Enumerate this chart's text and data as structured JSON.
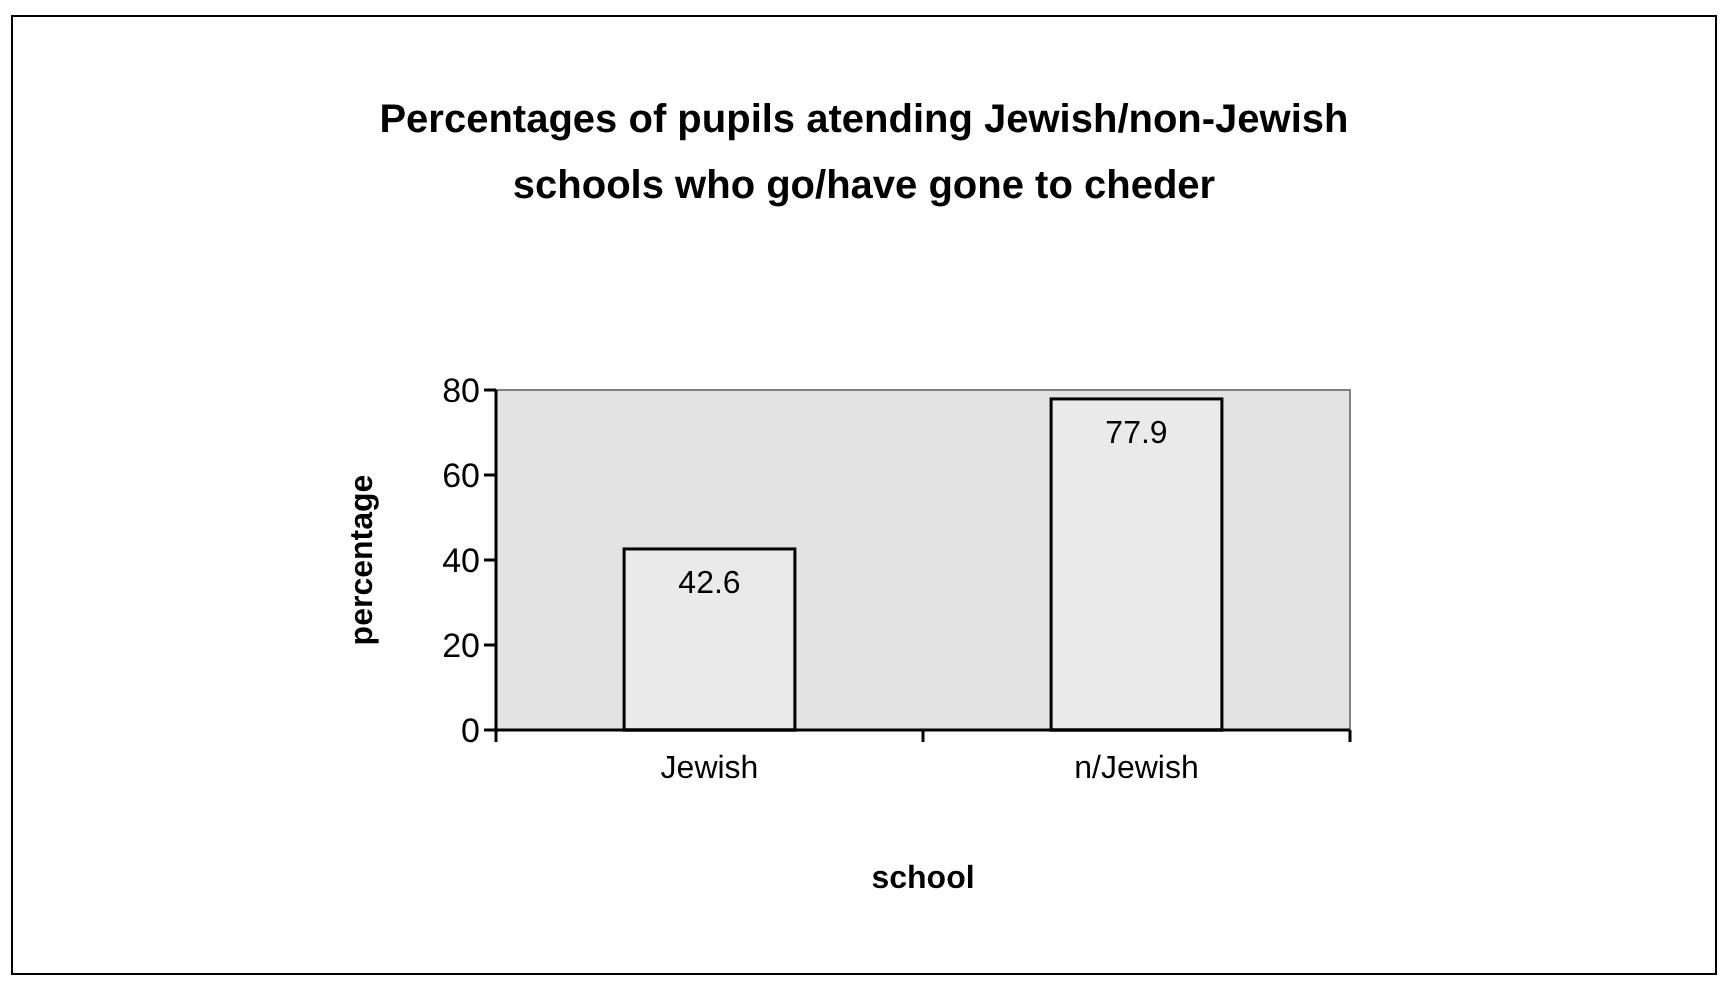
{
  "chart_data": {
    "type": "bar",
    "title": "Percentages of pupils atending Jewish/non-Jewish schools who go/have gone to cheder",
    "xlabel": "school",
    "ylabel": "percentage",
    "categories": [
      "Jewish",
      "n/Jewish"
    ],
    "values": [
      42.6,
      77.9
    ],
    "color": "#eaeaea",
    "ylim": [
      0,
      80
    ],
    "yticks": [
      0,
      20,
      40,
      60,
      80
    ],
    "data_labels": true
  }
}
